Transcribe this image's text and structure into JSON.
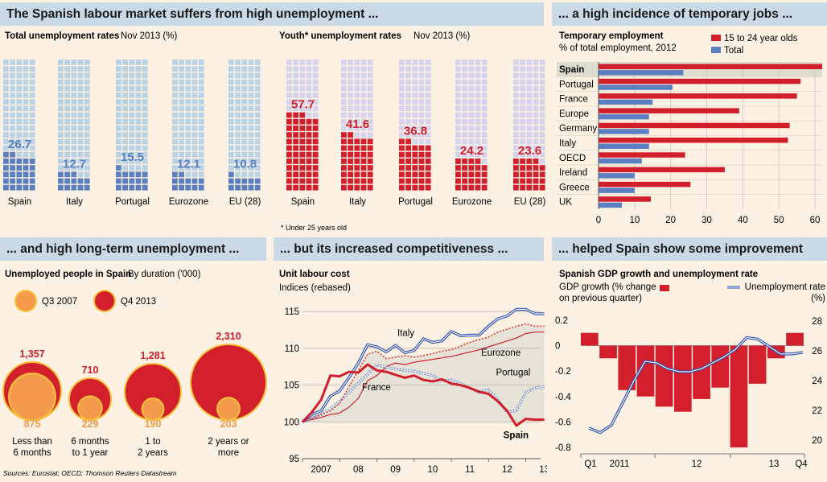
{
  "headers": {
    "top_left": "The Spanish labour market suffers from high unemployment ...",
    "top_right": "... a high incidence of temporary jobs ...",
    "bottom_left": "... and high long-term unemployment ...",
    "bottom_mid": "... but its increased competitiveness ...",
    "bottom_right": "... helped Spain show some improvement"
  },
  "colors": {
    "red": "#d21f2b",
    "blue": "#5b7fc0",
    "orange": "#f39a4c",
    "light_blue": "#b9d3e4",
    "lilac": "#d6d4ec",
    "header_bg": "#c9d9e6",
    "bg": "#fdf1e4"
  },
  "sources": "Sources: Eurostat; OECD; Thomson Reuters Datastream",
  "chart_data": [
    {
      "id": "total_unemployment",
      "type": "bar",
      "title": "Total unemployment rates",
      "subtitle": "Nov 2013 (%)",
      "categories": [
        "Spain",
        "Italy",
        "Portugal",
        "Eurozone",
        "EU (28)"
      ],
      "values": [
        26.7,
        12.7,
        15.5,
        12.1,
        10.8
      ],
      "labels": [
        "26.7",
        "12.7",
        "15.5",
        "12.1",
        "10.8"
      ]
    },
    {
      "id": "youth_unemployment",
      "type": "bar",
      "title": "Youth* unemployment rates",
      "subtitle": "Nov 2013 (%)",
      "note": "* Under 25 years old",
      "categories": [
        "Spain",
        "Italy",
        "Portugal",
        "Eurozone",
        "EU (28)"
      ],
      "values": [
        57.7,
        41.6,
        36.8,
        24.2,
        23.6
      ],
      "labels": [
        "57.7",
        "41.6",
        "36.8",
        "24.2",
        "23.6"
      ]
    },
    {
      "id": "temporary_employment",
      "type": "bar",
      "title": "Temporary employment",
      "subtitle": "% of total employment, 2012",
      "categories": [
        "Spain",
        "Portugal",
        "France",
        "Europe",
        "Germany",
        "Italy",
        "OECD",
        "Ireland",
        "Greece",
        "UK"
      ],
      "series": [
        {
          "name": "15 to 24 year olds",
          "values": [
            62,
            56,
            55,
            39,
            53,
            52.5,
            24,
            35,
            25.5,
            14.5
          ]
        },
        {
          "name": "Total",
          "values": [
            23.5,
            20.5,
            15,
            14,
            14,
            14,
            12,
            10,
            10,
            6.5
          ]
        }
      ],
      "xticks": [
        "0",
        "10",
        "20",
        "30",
        "40",
        "50",
        "60"
      ],
      "xlim": [
        0,
        62
      ]
    },
    {
      "id": "long_term_unemployment",
      "type": "scatter",
      "title": "Unemployed people in Spain",
      "subtitle": "By duration ('000)",
      "categories": [
        "Less than 6 months",
        "6 months to 1 year",
        "1 to 2 years",
        "2 years or more"
      ],
      "category_lines": [
        [
          "Less than",
          "6 months"
        ],
        [
          "6 months",
          "to 1 year"
        ],
        [
          "1 to",
          "2 years"
        ],
        [
          "2 years or",
          "more"
        ]
      ],
      "series": [
        {
          "name": "Q3 2007",
          "values": [
            875,
            229,
            190,
            203
          ]
        },
        {
          "name": "Q4 2013",
          "values": [
            1357,
            710,
            1281,
            2310
          ]
        }
      ],
      "labels_q3": [
        "875",
        "229",
        "190",
        "203"
      ],
      "labels_q4": [
        "1,357",
        "710",
        "1,281",
        "2,310"
      ]
    },
    {
      "id": "unit_labour_cost",
      "type": "line",
      "title": "Unit labour cost",
      "subtitle": "Indices (rebased)",
      "xticks": [
        "2007",
        "08",
        "09",
        "10",
        "11",
        "12",
        "13"
      ],
      "xlim": [
        2007,
        2013.4
      ],
      "ylim": [
        95,
        116
      ],
      "yticks": [
        "95",
        "100",
        "105",
        "110",
        "115"
      ],
      "series": [
        {
          "name": "Italy",
          "x": [
            2007,
            2007.25,
            2007.5,
            2007.75,
            2008,
            2008.25,
            2008.5,
            2008.75,
            2009,
            2009.25,
            2009.5,
            2009.75,
            2010,
            2010.25,
            2010.5,
            2010.75,
            2011,
            2011.25,
            2011.5,
            2011.75,
            2012,
            2012.25,
            2012.5,
            2012.75,
            2013,
            2013.25,
            2013.5
          ],
          "y": [
            100,
            101,
            101.5,
            103.5,
            104.2,
            106,
            108,
            110.5,
            110.2,
            109.5,
            110.4,
            109.4,
            109.7,
            111.3,
            110.8,
            111,
            112.3,
            111.7,
            111.8,
            111.8,
            113,
            114,
            114.4,
            115.3,
            115.3,
            114.7,
            114.7
          ]
        },
        {
          "name": "Eurozone",
          "x": [
            2007,
            2007.25,
            2007.5,
            2007.75,
            2008,
            2008.25,
            2008.5,
            2008.75,
            2009,
            2009.25,
            2009.5,
            2009.75,
            2010,
            2010.25,
            2010.5,
            2010.75,
            2011,
            2011.25,
            2011.5,
            2011.75,
            2012,
            2012.25,
            2012.5,
            2012.75,
            2013,
            2013.25,
            2013.5
          ],
          "y": [
            100,
            100.5,
            101,
            101.5,
            102.5,
            104.8,
            107,
            109.2,
            109.6,
            108.6,
            108.8,
            109,
            108.8,
            109,
            109.3,
            109.6,
            109.8,
            110.3,
            110.8,
            111.2,
            111.5,
            112.2,
            112.6,
            113,
            113.3,
            113,
            113
          ]
        },
        {
          "name": "France",
          "x": [
            2007,
            2007.25,
            2007.5,
            2007.75,
            2008,
            2008.25,
            2008.5,
            2008.75,
            2009,
            2009.25,
            2009.5,
            2009.75,
            2010,
            2010.25,
            2010.5,
            2010.75,
            2011,
            2011.25,
            2011.5,
            2011.75,
            2012,
            2012.25,
            2012.5,
            2012.75,
            2013,
            2013.25,
            2013.5
          ],
          "y": [
            100,
            100.3,
            100.6,
            101,
            101.2,
            102,
            103.2,
            105.6,
            106.3,
            107.5,
            108,
            107.8,
            108.1,
            108.3,
            108.5,
            108.7,
            108.9,
            109.2,
            109.5,
            109.8,
            110.2,
            110.6,
            111,
            111.4,
            112,
            112.2,
            112.2
          ]
        },
        {
          "name": "Portugal",
          "x": [
            2007,
            2007.25,
            2007.5,
            2007.75,
            2008,
            2008.25,
            2008.5,
            2008.75,
            2009,
            2009.25,
            2009.5,
            2009.75,
            2010,
            2010.25,
            2010.5,
            2010.75,
            2011,
            2011.25,
            2011.5,
            2011.75,
            2012,
            2012.25,
            2012.5,
            2012.75,
            2013,
            2013.25,
            2013.5
          ],
          "y": [
            100,
            100.5,
            101,
            101.8,
            102.8,
            104,
            105.3,
            106.5,
            107.8,
            107.4,
            107.2,
            107,
            106.9,
            106.6,
            106.3,
            105.6,
            105.7,
            105.2,
            104.6,
            104,
            104.4,
            103,
            101.3,
            101.6,
            104,
            104.6,
            104.8
          ]
        },
        {
          "name": "Spain",
          "x": [
            2007,
            2007.25,
            2007.5,
            2007.75,
            2008,
            2008.25,
            2008.5,
            2008.75,
            2009,
            2009.25,
            2009.5,
            2009.75,
            2010,
            2010.25,
            2010.5,
            2010.75,
            2011,
            2011.25,
            2011.5,
            2011.75,
            2012,
            2012.25,
            2012.5,
            2012.75,
            2013,
            2013.25,
            2013.5
          ],
          "y": [
            100,
            101.3,
            103,
            106.3,
            106.2,
            106.8,
            106.7,
            107.8,
            107,
            106.8,
            106.4,
            106,
            106.3,
            105.7,
            105.5,
            105.8,
            105.2,
            105,
            104.6,
            104.1,
            103.8,
            102.8,
            101.5,
            99.5,
            100.4,
            100.3,
            100.3
          ]
        }
      ]
    },
    {
      "id": "gdp_unemployment",
      "type": "bar",
      "title": "Spanish GDP growth and unemployment rate",
      "left_axis_label": "GDP growth (% change on previous quarter)",
      "left_axis_label_lines": [
        "GDP growth (% change",
        "on previous quarter)"
      ],
      "right_axis_label": "Unemployment rate (%)",
      "right_axis_label_lines": [
        "Unemployment rate",
        "(%)"
      ],
      "legend_bar": "GDP growth",
      "legend_line": "Unemployment rate",
      "yticks_left": [
        "0.2",
        "0",
        "-0.2",
        "-0.4",
        "-0.6",
        "-0.8"
      ],
      "yticks_right": [
        "28",
        "26",
        "24",
        "22",
        "20"
      ],
      "ylim_left": [
        -0.8,
        0.25
      ],
      "ylim_right": [
        19.5,
        28.5
      ],
      "xticks": [
        "Q1",
        "2011",
        "12",
        "13",
        "Q4"
      ],
      "gdp_bars": [
        0.1,
        -0.1,
        -0.35,
        -0.4,
        -0.48,
        -0.52,
        -0.42,
        -0.33,
        -0.8,
        -0.3,
        -0.1,
        0.1
      ],
      "unemployment_x": [
        2009.0,
        2009.25,
        2009.5,
        2009.75,
        2010.0,
        2010.25,
        2010.5,
        2010.75,
        2011.0,
        2011.25,
        2011.5,
        2011.75,
        2012.0,
        2012.25,
        2012.5,
        2012.75,
        2013.0,
        2013.25,
        2013.5,
        2013.75
      ],
      "unemployment_y": [
        20.8,
        20.5,
        21.0,
        22.5,
        24.0,
        25.3,
        25.2,
        24.8,
        24.6,
        24.6,
        24.8,
        25.2,
        25.6,
        26.1,
        26.9,
        26.8,
        26.3,
        25.8,
        25.8,
        25.9
      ]
    }
  ]
}
